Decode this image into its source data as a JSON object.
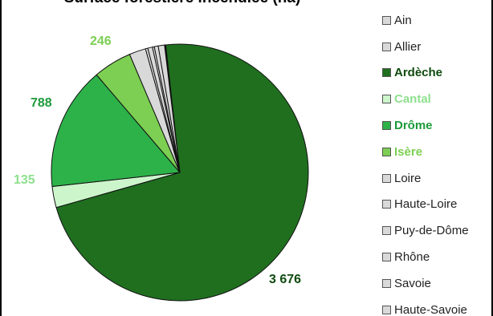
{
  "chart_data": {
    "type": "pie",
    "title": "Surface forestière incendiée (ha)",
    "slices": [
      {
        "name": "Ain",
        "value": 3,
        "color": "#d9d9d9",
        "bold": false,
        "label": ""
      },
      {
        "name": "Allier",
        "value": 5,
        "color": "#d9d9d9",
        "bold": false,
        "label": ""
      },
      {
        "name": "Ardèche",
        "value": 3676,
        "color": "#1f6f1f",
        "bold": true,
        "label": "3 676",
        "label_color": "#0f4a0f"
      },
      {
        "name": "Cantal",
        "value": 135,
        "color": "#ccf5cc",
        "bold": true,
        "label": "135",
        "label_color": "#8ee08e"
      },
      {
        "name": "Drôme",
        "value": 788,
        "color": "#2db24a",
        "bold": true,
        "label": "788",
        "label_color": "#1e9a3a"
      },
      {
        "name": "Isère",
        "value": 246,
        "color": "#7ccf52",
        "bold": true,
        "label": "246",
        "label_color": "#7ccf52"
      },
      {
        "name": "Loire",
        "value": 106,
        "color": "#d9d9d9",
        "bold": false,
        "label": ""
      },
      {
        "name": "Haute-Loire",
        "value": 15,
        "color": "#d9d9d9",
        "bold": false,
        "label": ""
      },
      {
        "name": "Puy-de-Dôme",
        "value": 30,
        "color": "#d9d9d9",
        "bold": false,
        "label": ""
      },
      {
        "name": "Rhône",
        "value": 12,
        "color": "#d9d9d9",
        "bold": false,
        "label": ""
      },
      {
        "name": "Savoie",
        "value": 25,
        "color": "#d9d9d9",
        "bold": false,
        "label": ""
      },
      {
        "name": "Haute-Savoie",
        "value": 40,
        "color": "#d9d9d9",
        "bold": false,
        "label": ""
      }
    ],
    "legend_position": "right"
  }
}
